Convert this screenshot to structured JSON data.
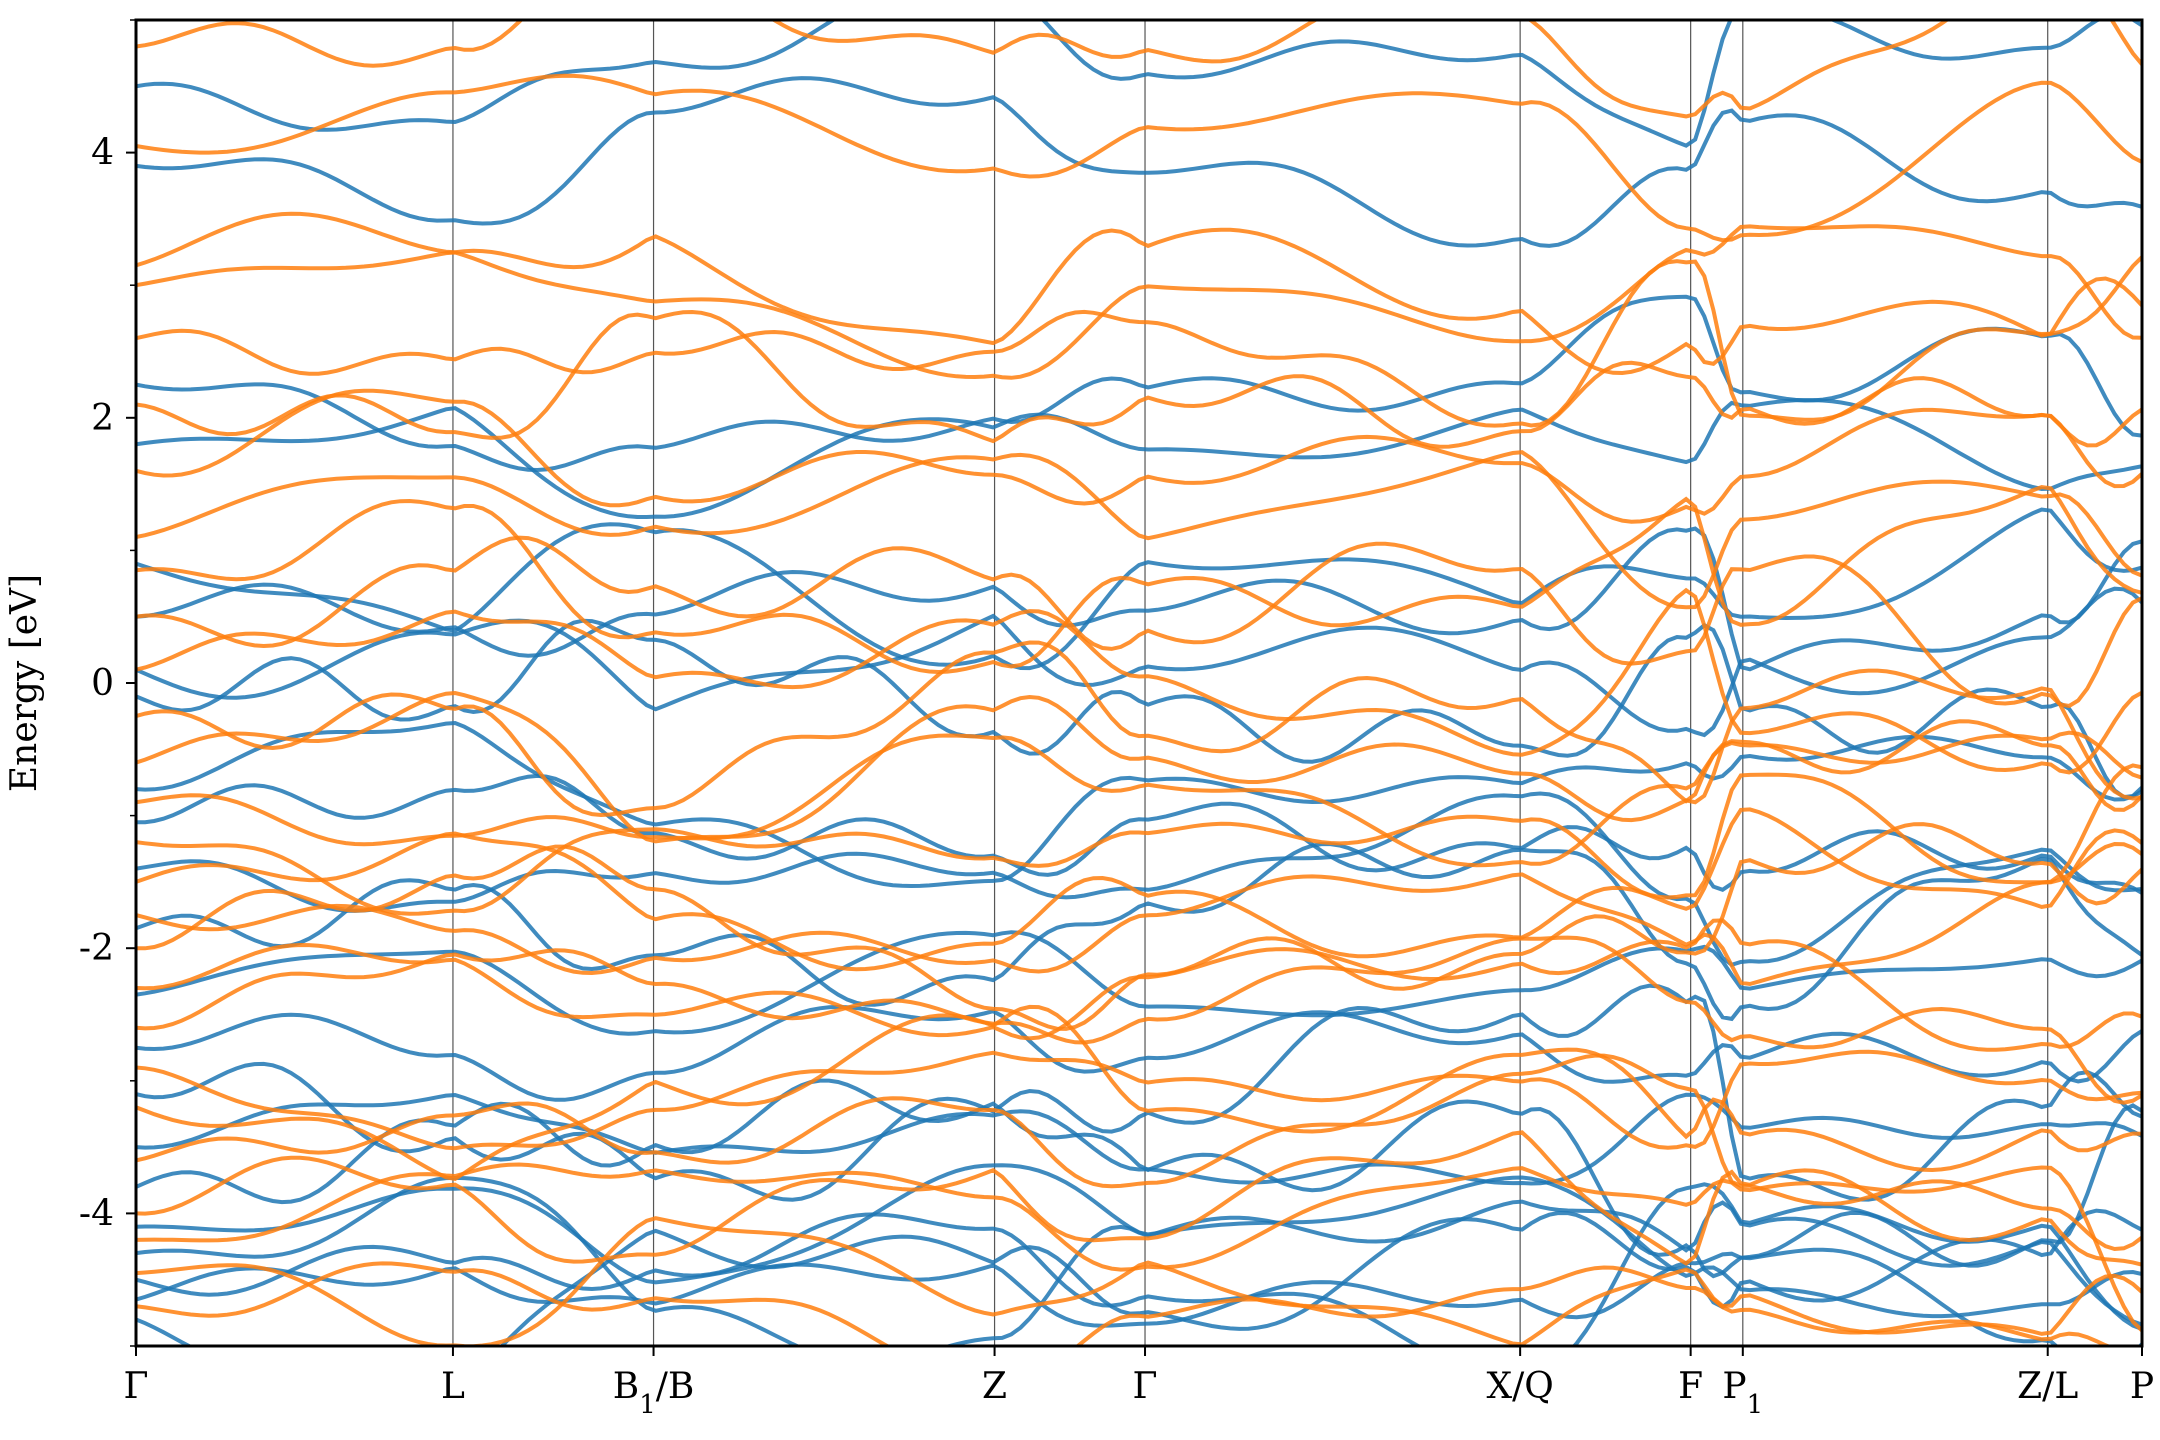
{
  "chart_data": {
    "type": "line",
    "title": "",
    "xlabel": "",
    "ylabel": "Energy [eV]",
    "ylim": [
      -5,
      5
    ],
    "y_ticks": [
      -4,
      -2,
      0,
      2,
      4
    ],
    "y_minor_ticks": [
      -5,
      -3,
      -1,
      1,
      3,
      5
    ],
    "grid": "vertical lines at high-symmetry points",
    "legend": "none",
    "x_ticks": [
      {
        "label": "Γ",
        "sub": "",
        "pos": 0.0
      },
      {
        "label": "L",
        "sub": "",
        "pos": 0.158
      },
      {
        "label": "B",
        "sub": "1",
        "suffix": "/B",
        "pos": 0.258
      },
      {
        "label": "Z",
        "sub": "",
        "pos": 0.428
      },
      {
        "label": "Γ",
        "sub": "",
        "pos": 0.503
      },
      {
        "label": "X/Q",
        "sub": "",
        "pos": 0.69
      },
      {
        "label": "F",
        "sub": "",
        "pos": 0.775
      },
      {
        "label": "P",
        "sub": "1",
        "pos": 0.801
      },
      {
        "label": "Z/L",
        "sub": "",
        "pos": 0.953
      },
      {
        "label": "P",
        "sub": "",
        "pos": 1.0
      }
    ],
    "series": [
      {
        "color": "#1f77b4",
        "band_energies_at_gamma": [
          4.5,
          3.9,
          2.25,
          1.8,
          0.9,
          0.5,
          0.1,
          -0.1,
          -0.8,
          -1.05,
          -1.4,
          -1.85,
          -2.35,
          -2.75,
          -3.1,
          -3.5,
          -3.8,
          -4.1,
          -4.3,
          -4.5,
          -4.65,
          -4.8
        ]
      },
      {
        "color": "#ff7f0e",
        "band_energies_at_gamma": [
          4.8,
          4.05,
          3.15,
          3.0,
          2.6,
          2.1,
          1.6,
          1.1,
          0.85,
          0.5,
          0.1,
          -0.25,
          -0.6,
          -0.9,
          -1.2,
          -1.5,
          -1.75,
          -2.0,
          -2.3,
          -2.6,
          -2.9,
          -3.2,
          -3.6,
          -4.0,
          -4.2,
          -4.45,
          -4.7
        ]
      }
    ]
  }
}
